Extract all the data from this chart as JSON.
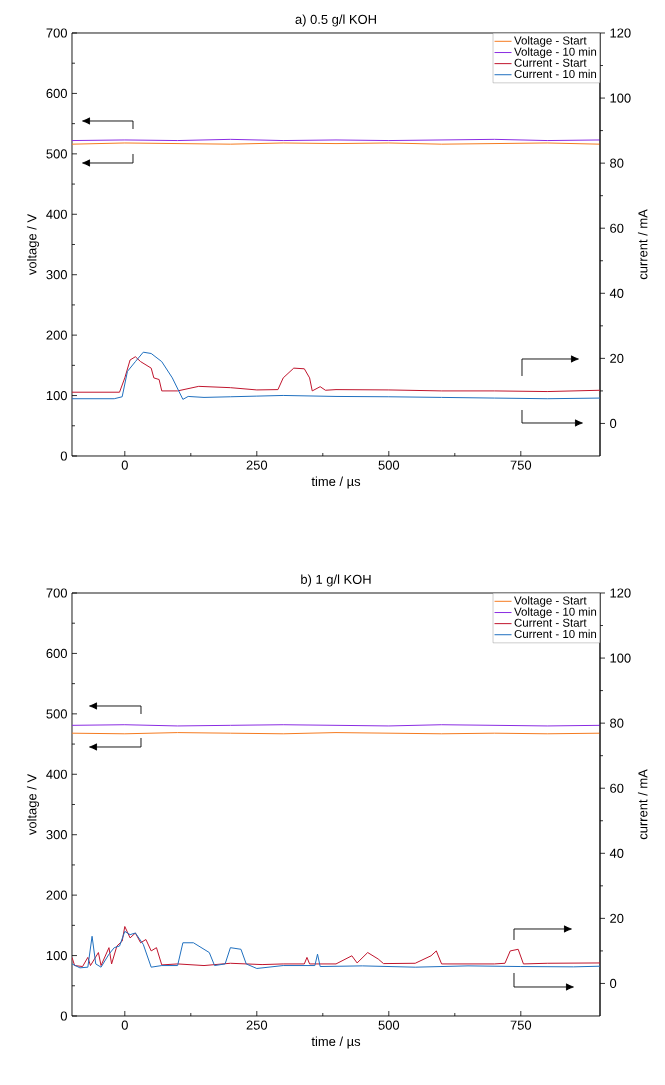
{
  "chart_data": [
    {
      "type": "line",
      "title": "a) 0.5 g/l KOH",
      "xlabel": "time / µs",
      "ylabel": "voltage / V",
      "y2label": "current / mA",
      "xlim": [
        -100,
        900
      ],
      "xticks": [
        0,
        250,
        500,
        750
      ],
      "ylim": [
        0,
        700
      ],
      "yticks": [
        0,
        100,
        200,
        300,
        400,
        500,
        600,
        700
      ],
      "y2lim": [
        -10,
        120
      ],
      "y2ticks": [
        0,
        20,
        40,
        60,
        80,
        100,
        120
      ],
      "legend": "top right",
      "series": [
        {
          "name": "Voltage - Start",
          "color": "#f57a1f",
          "x": [
            -100,
            0,
            100,
            200,
            300,
            400,
            500,
            600,
            700,
            800,
            900
          ],
          "values": [
            516,
            518,
            517,
            516,
            518,
            517,
            518,
            516,
            517,
            518,
            516
          ]
        },
        {
          "name": "Voltage - 10 min",
          "color": "#8a2be2",
          "x": [
            -100,
            0,
            100,
            200,
            300,
            400,
            500,
            600,
            700,
            800,
            900
          ],
          "values": [
            522,
            523,
            522,
            524,
            522,
            523,
            522,
            523,
            524,
            522,
            523
          ]
        },
        {
          "name": "Current - Start",
          "color": "#c0142c",
          "axis": "y2",
          "x": [
            -100,
            -10,
            0,
            10,
            20,
            30,
            40,
            50,
            55,
            65,
            70,
            100,
            140,
            200,
            250,
            290,
            300,
            320,
            340,
            350,
            355,
            370,
            380,
            400,
            500,
            600,
            700,
            800,
            900
          ],
          "values": [
            9.6,
            9.6,
            14,
            19.5,
            20.5,
            19,
            18,
            17,
            14,
            13.5,
            10,
            10,
            11.4,
            11,
            10.3,
            10.4,
            14,
            17,
            16.8,
            14,
            10,
            11.3,
            10.2,
            10.4,
            10.3,
            10,
            10,
            9.8,
            10.2
          ]
        },
        {
          "name": "Current - 10 min",
          "color": "#1f6fbf",
          "axis": "y2",
          "x": [
            -100,
            -20,
            -5,
            5,
            20,
            35,
            50,
            70,
            90,
            110,
            120,
            150,
            200,
            250,
            300,
            400,
            500,
            600,
            700,
            800,
            900
          ],
          "values": [
            7.6,
            7.6,
            8.2,
            16,
            19,
            21.9,
            21.5,
            19,
            14,
            7.4,
            8.3,
            8,
            8.2,
            8.4,
            8.6,
            8.3,
            8.2,
            8,
            7.8,
            7.6,
            7.8
          ]
        }
      ]
    },
    {
      "type": "line",
      "title": "b) 1 g/l KOH",
      "xlabel": "time / µs",
      "ylabel": "voltage / V",
      "y2label": "current / mA",
      "xlim": [
        -100,
        900
      ],
      "xticks": [
        0,
        250,
        500,
        750
      ],
      "ylim": [
        0,
        700
      ],
      "yticks": [
        0,
        100,
        200,
        300,
        400,
        500,
        600,
        700
      ],
      "y2lim": [
        -10,
        120
      ],
      "y2ticks": [
        0,
        20,
        40,
        60,
        80,
        100,
        120
      ],
      "legend": "top right",
      "series": [
        {
          "name": "Voltage - Start",
          "color": "#f57a1f",
          "x": [
            -100,
            0,
            100,
            200,
            300,
            400,
            500,
            600,
            700,
            800,
            900
          ],
          "values": [
            468,
            467,
            469,
            468,
            467,
            469,
            468,
            467,
            468,
            467,
            468
          ]
        },
        {
          "name": "Voltage - 10 min",
          "color": "#8a2be2",
          "x": [
            -100,
            0,
            100,
            200,
            300,
            400,
            500,
            600,
            700,
            800,
            900
          ],
          "values": [
            481,
            482,
            480,
            481,
            482,
            481,
            480,
            482,
            481,
            480,
            481
          ]
        },
        {
          "name": "Current - Start",
          "color": "#c0142c",
          "axis": "y2",
          "x": [
            -100,
            -95,
            -80,
            -70,
            -65,
            -50,
            -45,
            -30,
            -25,
            -15,
            -5,
            0,
            10,
            20,
            30,
            40,
            50,
            60,
            70,
            100,
            150,
            200,
            260,
            300,
            340,
            345,
            350,
            400,
            430,
            440,
            460,
            480,
            490,
            550,
            580,
            590,
            600,
            700,
            720,
            730,
            745,
            755,
            800,
            900
          ],
          "values": [
            8,
            5.5,
            5.2,
            8,
            5.5,
            9.5,
            5.5,
            11,
            6,
            11.5,
            13,
            17.5,
            14,
            15.5,
            12.5,
            13.5,
            10,
            11,
            5.7,
            6,
            5.5,
            6.2,
            5.8,
            6,
            6,
            8,
            6,
            6,
            8.5,
            6.3,
            9.5,
            7.5,
            6.1,
            6.2,
            8.5,
            10,
            6,
            6,
            6.2,
            10,
            10.5,
            6,
            6.2,
            6.3
          ]
        },
        {
          "name": "Current - 10 min",
          "color": "#1f6fbf",
          "axis": "y2",
          "x": [
            -100,
            -85,
            -70,
            -62,
            -55,
            -45,
            -30,
            -20,
            -10,
            0,
            10,
            20,
            35,
            50,
            70,
            100,
            110,
            130,
            160,
            170,
            190,
            200,
            220,
            230,
            250,
            300,
            360,
            365,
            370,
            450,
            550,
            650,
            750,
            850,
            900
          ],
          "values": [
            6,
            4.8,
            5,
            14.5,
            6,
            5,
            9,
            11,
            11.5,
            16,
            15,
            15.5,
            12,
            5,
            5.5,
            5.5,
            12.5,
            12.5,
            9.5,
            5.5,
            6,
            11,
            10.5,
            6,
            4.6,
            5.5,
            5.5,
            9,
            5.2,
            5.4,
            5,
            5.4,
            5.2,
            5.1,
            5.3
          ]
        }
      ]
    }
  ]
}
